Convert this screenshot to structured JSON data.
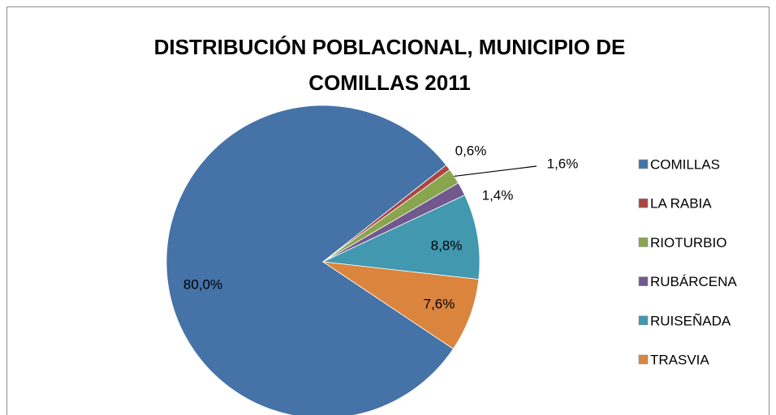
{
  "chart_data": {
    "type": "pie",
    "title": "DISTRIBUCIÓN POBLACIONAL, MUNICIPIO DE COMILLAS 2011",
    "categories": [
      "COMILLAS",
      "LA RABIA",
      "RIOTURBIO",
      "RUBÁRCENA",
      "RUISEÑADA",
      "TRASVIA"
    ],
    "values": [
      80.0,
      0.6,
      1.6,
      1.4,
      8.8,
      7.6
    ],
    "value_labels": [
      "80,0%",
      "0,6%",
      "1,6%",
      "1,4%",
      "8,8%",
      "7,6%"
    ],
    "colors": [
      "#4572a7",
      "#aa4643",
      "#89a54e",
      "#71588f",
      "#4198af",
      "#db843d"
    ],
    "legend": "right"
  }
}
